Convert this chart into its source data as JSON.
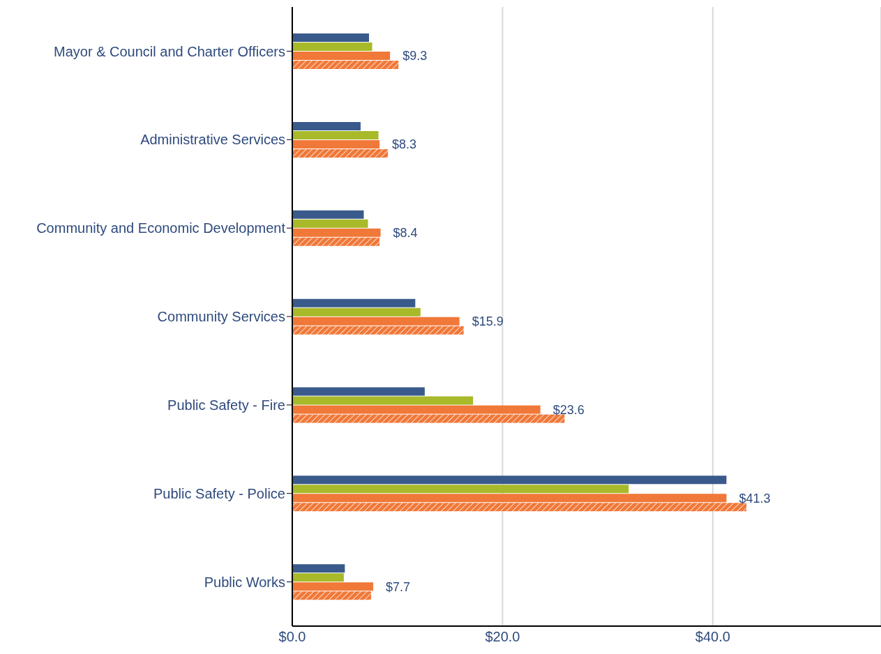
{
  "chart_data": {
    "type": "bar",
    "orientation": "horizontal",
    "categories": [
      "Mayor & Council and Charter Officers",
      "Administrative Services",
      "Community and Economic Development",
      "Community Services",
      "Public Safety - Fire",
      "Public Safety - Police",
      "Public Works"
    ],
    "series": [
      {
        "color": "#3a5a8c",
        "values": [
          7.3,
          6.5,
          6.8,
          11.7,
          12.6,
          41.3,
          5.0
        ]
      },
      {
        "color": "#a8b92a",
        "values": [
          7.6,
          8.2,
          7.2,
          12.2,
          17.2,
          32.0,
          4.9
        ]
      },
      {
        "color": "#f07838",
        "values": [
          9.3,
          8.3,
          8.4,
          15.9,
          23.6,
          41.3,
          7.7
        ],
        "value_labels": [
          "$9.3",
          "$8.3",
          "$8.4",
          "$15.9",
          "$23.6",
          "$41.3",
          "$7.7"
        ]
      },
      {
        "color": "#f07838",
        "values": [
          10.1,
          9.1,
          8.3,
          16.3,
          25.9,
          43.2,
          7.5
        ]
      }
    ],
    "xlim": [
      0,
      56
    ],
    "xticks": [
      {
        "value": 0,
        "label": "$0.0"
      },
      {
        "value": 20,
        "label": "$20.0"
      },
      {
        "value": 40,
        "label": "$40.0"
      }
    ],
    "grid": "x",
    "legend": false
  }
}
